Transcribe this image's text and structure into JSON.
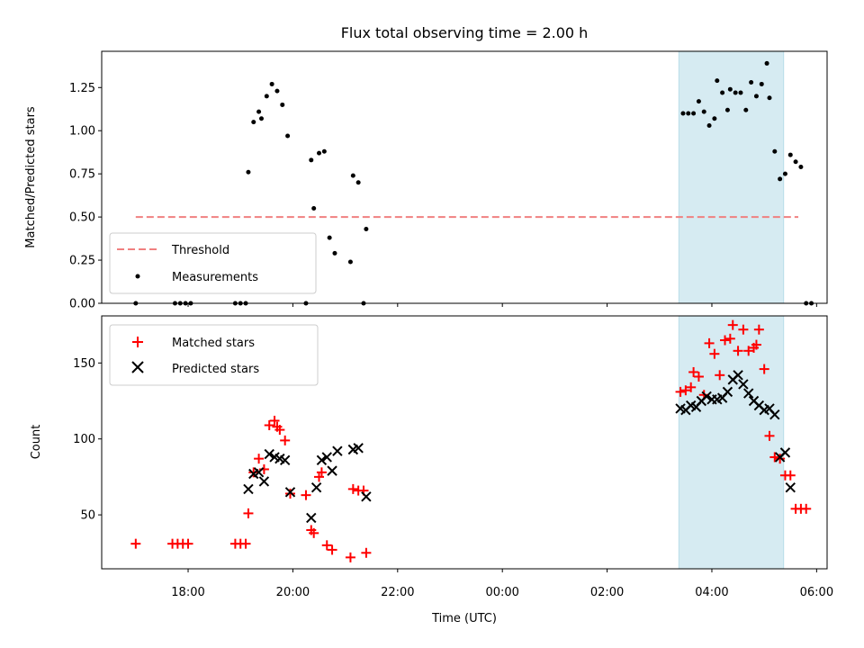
{
  "chart_data": [
    {
      "type": "scatter",
      "title": "Flux total observing time = 2.00 h",
      "xlabel": "",
      "ylabel": "Matched/Predicted stars",
      "x_unit": "hours since 00:00 UTC",
      "xlim": [
        -7.65,
        6.2
      ],
      "ylim": [
        0,
        1.46
      ],
      "yticks": [
        0,
        0.25,
        0.5,
        0.75,
        1.0,
        1.25
      ],
      "ytick_labels": [
        "0.00",
        "0.25",
        "0.50",
        "0.75",
        "1.00",
        "1.25"
      ],
      "highlight_span": [
        3.37,
        5.37
      ],
      "threshold": {
        "value": 0.5,
        "x_range": [
          -7.0,
          5.65
        ],
        "color": "#f08080"
      },
      "legend": {
        "placement": "lower-left",
        "entries": [
          "Threshold",
          "Measurements"
        ]
      },
      "series": [
        {
          "name": "Measurements",
          "color": "#000000",
          "points": [
            [
              -7.0,
              0.0
            ],
            [
              -6.25,
              0.0
            ],
            [
              -6.15,
              0.0
            ],
            [
              -6.05,
              0.0
            ],
            [
              -5.95,
              0.0
            ],
            [
              -5.1,
              0.0
            ],
            [
              -5.0,
              0.0
            ],
            [
              -4.9,
              0.0
            ],
            [
              -4.85,
              0.76
            ],
            [
              -4.75,
              1.05
            ],
            [
              -4.65,
              1.11
            ],
            [
              -4.6,
              1.07
            ],
            [
              -4.5,
              1.2
            ],
            [
              -4.4,
              1.27
            ],
            [
              -4.3,
              1.23
            ],
            [
              -4.2,
              1.15
            ],
            [
              -4.1,
              0.97
            ],
            [
              -3.75,
              0.0
            ],
            [
              -3.65,
              0.83
            ],
            [
              -3.6,
              0.55
            ],
            [
              -3.5,
              0.87
            ],
            [
              -3.4,
              0.88
            ],
            [
              -3.3,
              0.38
            ],
            [
              -3.2,
              0.29
            ],
            [
              -2.9,
              0.24
            ],
            [
              -2.85,
              0.74
            ],
            [
              -2.75,
              0.7
            ],
            [
              -2.65,
              0.0
            ],
            [
              -2.6,
              0.43
            ],
            [
              3.45,
              1.1
            ],
            [
              3.55,
              1.1
            ],
            [
              3.65,
              1.1
            ],
            [
              3.75,
              1.17
            ],
            [
              3.85,
              1.11
            ],
            [
              3.95,
              1.03
            ],
            [
              4.05,
              1.07
            ],
            [
              4.1,
              1.29
            ],
            [
              4.2,
              1.22
            ],
            [
              4.3,
              1.12
            ],
            [
              4.35,
              1.24
            ],
            [
              4.45,
              1.22
            ],
            [
              4.55,
              1.22
            ],
            [
              4.65,
              1.12
            ],
            [
              4.75,
              1.28
            ],
            [
              4.85,
              1.2
            ],
            [
              4.95,
              1.27
            ],
            [
              5.05,
              1.39
            ],
            [
              5.1,
              1.19
            ],
            [
              5.2,
              0.88
            ],
            [
              5.3,
              0.72
            ],
            [
              5.4,
              0.75
            ],
            [
              5.5,
              0.86
            ],
            [
              5.6,
              0.82
            ],
            [
              5.7,
              0.79
            ],
            [
              5.8,
              0.0
            ],
            [
              5.9,
              0.0
            ]
          ]
        }
      ]
    },
    {
      "type": "scatter",
      "title": "",
      "xlabel": "Time (UTC)",
      "ylabel": "Count",
      "x_unit": "hours since 00:00 UTC",
      "xlim": [
        -7.65,
        6.2
      ],
      "ylim": [
        14.5,
        181
      ],
      "yticks": [
        50,
        100,
        150
      ],
      "ytick_labels": [
        "50",
        "100",
        "150"
      ],
      "xticks": [
        -6,
        -4,
        -2,
        0,
        2,
        4,
        6
      ],
      "xtick_labels": [
        "18:00",
        "20:00",
        "22:00",
        "00:00",
        "02:00",
        "04:00",
        "06:00"
      ],
      "highlight_span": [
        3.37,
        5.37
      ],
      "legend": {
        "placement": "upper-left",
        "entries": [
          "Matched stars",
          "Predicted stars"
        ]
      },
      "series": [
        {
          "name": "Matched stars",
          "marker": "plus",
          "color": "#ff0000",
          "points": [
            [
              -7.0,
              31
            ],
            [
              -6.3,
              31
            ],
            [
              -6.2,
              31
            ],
            [
              -6.1,
              31
            ],
            [
              -6.0,
              31
            ],
            [
              -5.1,
              31
            ],
            [
              -5.0,
              31
            ],
            [
              -4.9,
              31
            ],
            [
              -4.85,
              51
            ],
            [
              -4.75,
              78
            ],
            [
              -4.65,
              87
            ],
            [
              -4.55,
              80
            ],
            [
              -4.45,
              109
            ],
            [
              -4.35,
              112
            ],
            [
              -4.3,
              108
            ],
            [
              -4.25,
              106
            ],
            [
              -4.15,
              99
            ],
            [
              -4.05,
              64
            ],
            [
              -3.75,
              63
            ],
            [
              -3.65,
              40
            ],
            [
              -3.6,
              38
            ],
            [
              -3.5,
              75
            ],
            [
              -3.45,
              78
            ],
            [
              -3.35,
              30
            ],
            [
              -3.25,
              27
            ],
            [
              -2.9,
              22
            ],
            [
              -2.85,
              67
            ],
            [
              -2.75,
              66
            ],
            [
              -2.65,
              66
            ],
            [
              -2.6,
              25
            ],
            [
              3.4,
              131
            ],
            [
              3.5,
              132
            ],
            [
              3.6,
              134
            ],
            [
              3.65,
              144
            ],
            [
              3.75,
              141
            ],
            [
              3.85,
              129
            ],
            [
              3.95,
              163
            ],
            [
              4.05,
              156
            ],
            [
              4.15,
              142
            ],
            [
              4.25,
              165
            ],
            [
              4.35,
              166
            ],
            [
              4.4,
              175
            ],
            [
              4.5,
              158
            ],
            [
              4.6,
              172
            ],
            [
              4.7,
              158
            ],
            [
              4.8,
              160
            ],
            [
              4.85,
              162
            ],
            [
              4.9,
              172
            ],
            [
              5.0,
              146
            ],
            [
              5.1,
              102
            ],
            [
              5.2,
              88
            ],
            [
              5.3,
              87
            ],
            [
              5.4,
              76
            ],
            [
              5.5,
              76
            ],
            [
              5.6,
              54
            ],
            [
              5.7,
              54
            ],
            [
              5.8,
              54
            ]
          ]
        },
        {
          "name": "Predicted stars",
          "marker": "x",
          "color": "#000000",
          "points": [
            [
              -4.85,
              67
            ],
            [
              -4.75,
              77
            ],
            [
              -4.65,
              78
            ],
            [
              -4.55,
              72
            ],
            [
              -4.45,
              90
            ],
            [
              -4.35,
              88
            ],
            [
              -4.25,
              87
            ],
            [
              -4.15,
              86
            ],
            [
              -4.05,
              65
            ],
            [
              -3.65,
              48
            ],
            [
              -3.55,
              68
            ],
            [
              -3.45,
              86
            ],
            [
              -3.35,
              88
            ],
            [
              -3.25,
              79
            ],
            [
              -3.15,
              92
            ],
            [
              -2.85,
              93
            ],
            [
              -2.75,
              94
            ],
            [
              -2.6,
              62
            ],
            [
              3.4,
              120
            ],
            [
              3.5,
              119
            ],
            [
              3.6,
              122
            ],
            [
              3.7,
              121
            ],
            [
              3.8,
              125
            ],
            [
              3.9,
              128
            ],
            [
              4.0,
              126
            ],
            [
              4.1,
              126
            ],
            [
              4.2,
              127
            ],
            [
              4.3,
              131
            ],
            [
              4.4,
              139
            ],
            [
              4.5,
              142
            ],
            [
              4.6,
              136
            ],
            [
              4.7,
              130
            ],
            [
              4.8,
              125
            ],
            [
              4.9,
              122
            ],
            [
              5.0,
              119
            ],
            [
              5.1,
              120
            ],
            [
              5.2,
              116
            ],
            [
              5.3,
              88
            ],
            [
              5.4,
              91
            ],
            [
              5.5,
              68
            ]
          ]
        }
      ]
    }
  ]
}
